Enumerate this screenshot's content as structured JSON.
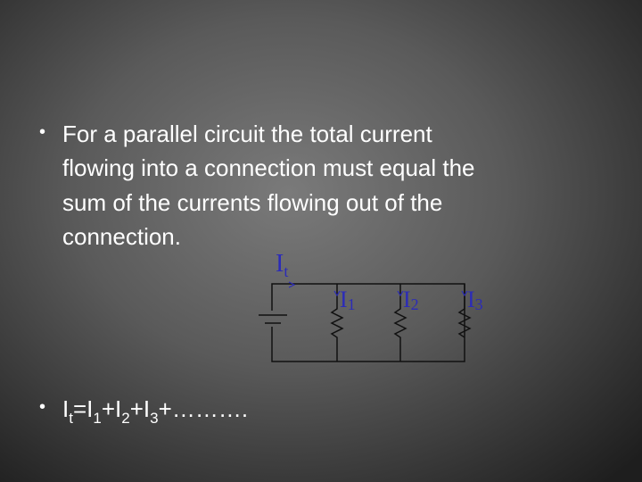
{
  "bullets": [
    {
      "lines": [
        "For a parallel circuit the total current",
        "flowing into a connection must equal the",
        "sum of the currents flowing out of the",
        "connection."
      ]
    },
    {
      "formula": [
        "I",
        "t",
        "=I",
        "1",
        "+I",
        "2",
        "+I",
        "3",
        "+………."
      ]
    }
  ],
  "circuit": {
    "labels": [
      {
        "main": "I",
        "sub": "t"
      },
      {
        "main": "I",
        "sub": "1"
      },
      {
        "main": "I",
        "sub": "2"
      },
      {
        "main": "I",
        "sub": "3"
      }
    ]
  }
}
